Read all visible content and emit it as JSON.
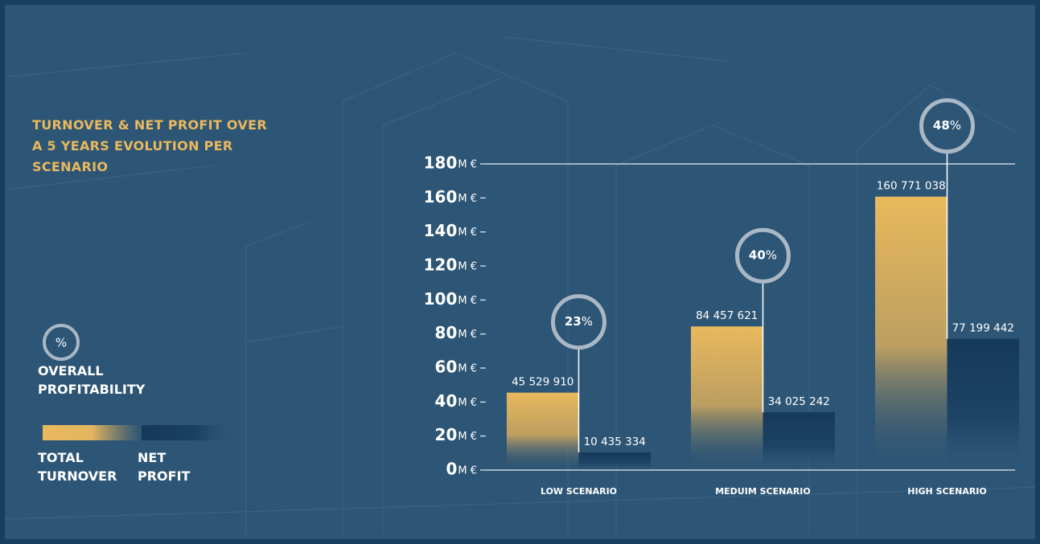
{
  "chart_data": {
    "type": "bar",
    "title": "TURNOVER & NET PROFIT OVER A 5 YEARS EVOLUTION PER SCENARIO",
    "categories": [
      "LOW SCENARIO",
      "MEDUIM SCENARIO",
      "HIGH SCENARIO"
    ],
    "series": [
      {
        "name": "TOTAL TURNOVER",
        "color": "#e9b95c",
        "values": [
          45529910,
          84457621,
          160771038
        ],
        "value_labels": [
          "45 529 910",
          "84 457 621",
          "160 771 038"
        ]
      },
      {
        "name": "NET PROFIT",
        "color": "#15395a",
        "values": [
          10435334,
          34025242,
          77199442
        ],
        "value_labels": [
          "10 435 334",
          "34 025 242",
          "77 199 442"
        ]
      }
    ],
    "profitability": {
      "name": "OVERALL PROFITABILITY",
      "unit": "%",
      "values": [
        23,
        40,
        48
      ]
    },
    "ylim": [
      0,
      180000000
    ],
    "yticks": [
      {
        "value": 0,
        "label": "0"
      },
      {
        "value": 20000000,
        "label": "20"
      },
      {
        "value": 40000000,
        "label": "40"
      },
      {
        "value": 60000000,
        "label": "60"
      },
      {
        "value": 80000000,
        "label": "80"
      },
      {
        "value": 100000000,
        "label": "100"
      },
      {
        "value": 120000000,
        "label": "120"
      },
      {
        "value": 140000000,
        "label": "140"
      },
      {
        "value": 160000000,
        "label": "160"
      },
      {
        "value": 180000000,
        "label": "180"
      }
    ],
    "y_unit": "M €",
    "grid": false
  }
}
